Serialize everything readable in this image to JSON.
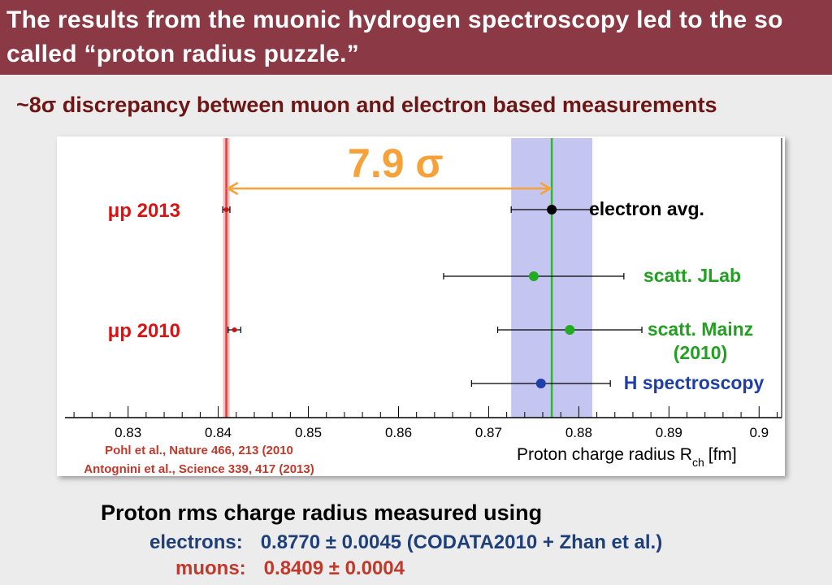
{
  "header": {
    "title": "The results from the muonic hydrogen spectroscopy led to the so called “proton radius puzzle.”",
    "bg_color": "#8b3a45"
  },
  "subtitle": "~8σ discrepancy between muon and electron  based measurements",
  "chart_data": {
    "type": "scatter",
    "xlabel_main": "Proton charge radius R",
    "xlabel_sub": "ch",
    "xlabel_unit": "[fm]",
    "xlim": [
      0.823,
      0.9025
    ],
    "xticks": [
      0.83,
      0.84,
      0.85,
      0.86,
      0.87,
      0.88,
      0.89,
      0.9
    ],
    "xtick_labels": [
      "0.83",
      "0.84",
      "0.85",
      "0.86",
      "0.87",
      "0.88",
      "0.89",
      "0.9"
    ],
    "grid": false,
    "sigma_annotation": "7.9 σ",
    "sigma_span": [
      0.8409,
      0.877
    ],
    "muon_band": {
      "value": 0.8409,
      "color": "#e04040",
      "band_color": "#f7b8b8"
    },
    "electron_band": {
      "center": 0.877,
      "low": 0.8725,
      "high": 0.8815,
      "color": "#2db82d",
      "band_color": "#c5c5f2"
    },
    "points": [
      {
        "label": "μp 2013",
        "x": 0.8409,
        "err": 0.0004,
        "color": "#cc1111",
        "label_color": "#dd1111",
        "label_side": "left",
        "row": 1
      },
      {
        "label": "μp 2010",
        "x": 0.8418,
        "err": 0.0007,
        "color": "#cc1111",
        "label_color": "#dd1111",
        "label_side": "left",
        "row": 3
      },
      {
        "label": "electron avg.",
        "x": 0.877,
        "err": 0.0045,
        "color": "#000000",
        "label_color": "#000000",
        "label_side": "right",
        "row": 1
      },
      {
        "label": "scatt. JLab",
        "x": 0.875,
        "err": 0.01,
        "color": "#22aa22",
        "label_color": "#22a022",
        "label_side": "right",
        "row": 2
      },
      {
        "label": "scatt. Mainz",
        "label2": "(2010)",
        "x": 0.879,
        "err": 0.008,
        "color": "#22aa22",
        "label_color": "#22a022",
        "label_side": "right",
        "row": 3
      },
      {
        "label": "H spectroscopy",
        "x": 0.8758,
        "err": 0.0077,
        "color": "#1f3fa8",
        "label_color": "#1f3fa8",
        "label_side": "right",
        "row": 4
      }
    ],
    "references": [
      "Pohl et al., Nature 466, 213 (2010",
      "Antognini et al., Science 339, 417 (2013)"
    ],
    "reference_color": "#c0392b"
  },
  "summary": {
    "title": "Proton rms charge radius measured using",
    "electrons_label": "electrons:",
    "electrons_value": "0.8770 ± 0.0045 (CODATA2010 + Zhan et al.)",
    "muons_label": "muons:",
    "muons_value": "0.8409 ± 0.0004"
  }
}
